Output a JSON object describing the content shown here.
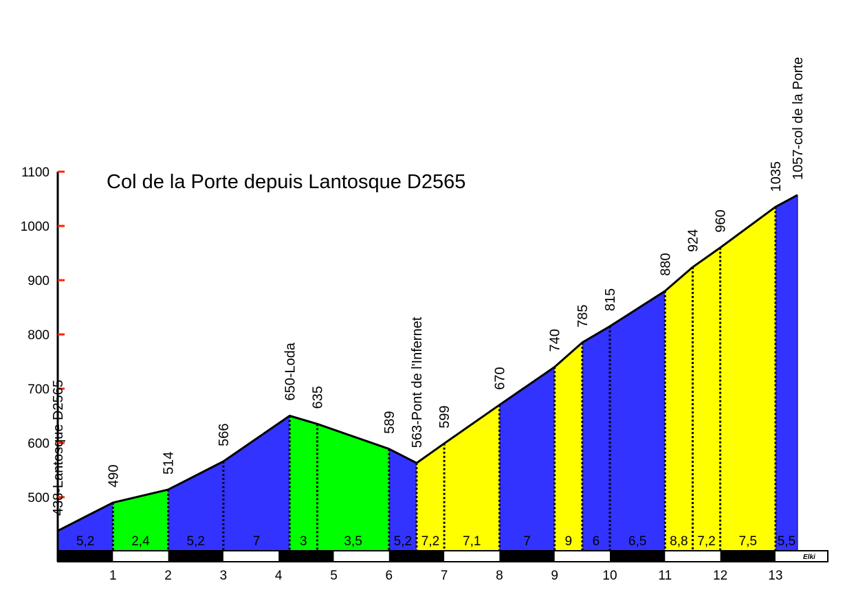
{
  "chart_data": {
    "type": "area",
    "title": "Col de la Porte depuis Lantosque D2565",
    "xlabel": "",
    "ylabel": "",
    "xlim": [
      0,
      13.4
    ],
    "ylim": [
      438,
      1100
    ],
    "y_ticks": [
      500,
      600,
      700,
      800,
      900,
      1000,
      1100
    ],
    "x_ticks": [
      1,
      2,
      3,
      4,
      5,
      6,
      7,
      8,
      9,
      10,
      11,
      12,
      13
    ],
    "profile": [
      {
        "x": 0,
        "alt": 438
      },
      {
        "x": 1,
        "alt": 490
      },
      {
        "x": 2,
        "alt": 514
      },
      {
        "x": 3,
        "alt": 566
      },
      {
        "x": 4.2,
        "alt": 650
      },
      {
        "x": 4.7,
        "alt": 635
      },
      {
        "x": 6,
        "alt": 589
      },
      {
        "x": 6.5,
        "alt": 563
      },
      {
        "x": 7,
        "alt": 599
      },
      {
        "x": 8,
        "alt": 670
      },
      {
        "x": 9,
        "alt": 740
      },
      {
        "x": 9.5,
        "alt": 785
      },
      {
        "x": 10,
        "alt": 815
      },
      {
        "x": 11,
        "alt": 880
      },
      {
        "x": 11.5,
        "alt": 924
      },
      {
        "x": 12,
        "alt": 960
      },
      {
        "x": 13,
        "alt": 1035
      },
      {
        "x": 13.4,
        "alt": 1057
      }
    ],
    "point_labels": [
      {
        "x": 0,
        "text": "438-Lantosque D2565"
      },
      {
        "x": 1,
        "text": "490"
      },
      {
        "x": 2,
        "text": "514"
      },
      {
        "x": 3,
        "text": "566"
      },
      {
        "x": 4.2,
        "text": "650-Loda"
      },
      {
        "x": 4.7,
        "text": "635"
      },
      {
        "x": 6,
        "text": "589"
      },
      {
        "x": 6.5,
        "text": "563-Pont de l'Infernet"
      },
      {
        "x": 7,
        "text": "599"
      },
      {
        "x": 8,
        "text": "670"
      },
      {
        "x": 9,
        "text": "740"
      },
      {
        "x": 9.5,
        "text": "785"
      },
      {
        "x": 10,
        "text": "815"
      },
      {
        "x": 11,
        "text": "880"
      },
      {
        "x": 11.5,
        "text": "924"
      },
      {
        "x": 12,
        "text": "960"
      },
      {
        "x": 13,
        "text": "1035"
      },
      {
        "x": 13.4,
        "text": "1057-col de la Porte"
      }
    ],
    "segments": [
      {
        "gradient": "5,2",
        "color": "#3333ff"
      },
      {
        "gradient": "2,4",
        "color": "#00ff00"
      },
      {
        "gradient": "5,2",
        "color": "#3333ff"
      },
      {
        "gradient": "7",
        "color": "#3333ff"
      },
      {
        "gradient": "3",
        "color": "#00ff00"
      },
      {
        "gradient": "3,5",
        "color": "#00ff00"
      },
      {
        "gradient": "5,2",
        "color": "#3333ff"
      },
      {
        "gradient": "7,2",
        "color": "#ffff00"
      },
      {
        "gradient": "7,1",
        "color": "#ffff00"
      },
      {
        "gradient": "7",
        "color": "#3333ff"
      },
      {
        "gradient": "9",
        "color": "#ffff00"
      },
      {
        "gradient": "6",
        "color": "#3333ff"
      },
      {
        "gradient": "6,5",
        "color": "#3333ff"
      },
      {
        "gradient": "8,8",
        "color": "#ffff00"
      },
      {
        "gradient": "7,2",
        "color": "#ffff00"
      },
      {
        "gradient": "7,5",
        "color": "#ffff00"
      },
      {
        "gradient": "5,5",
        "color": "#3333ff"
      }
    ],
    "grid": false,
    "signature": "Elki"
  },
  "colors": {
    "blue": "#3333ff",
    "green": "#00ff00",
    "yellow": "#ffff00",
    "tick_mark": "#ff2200"
  }
}
